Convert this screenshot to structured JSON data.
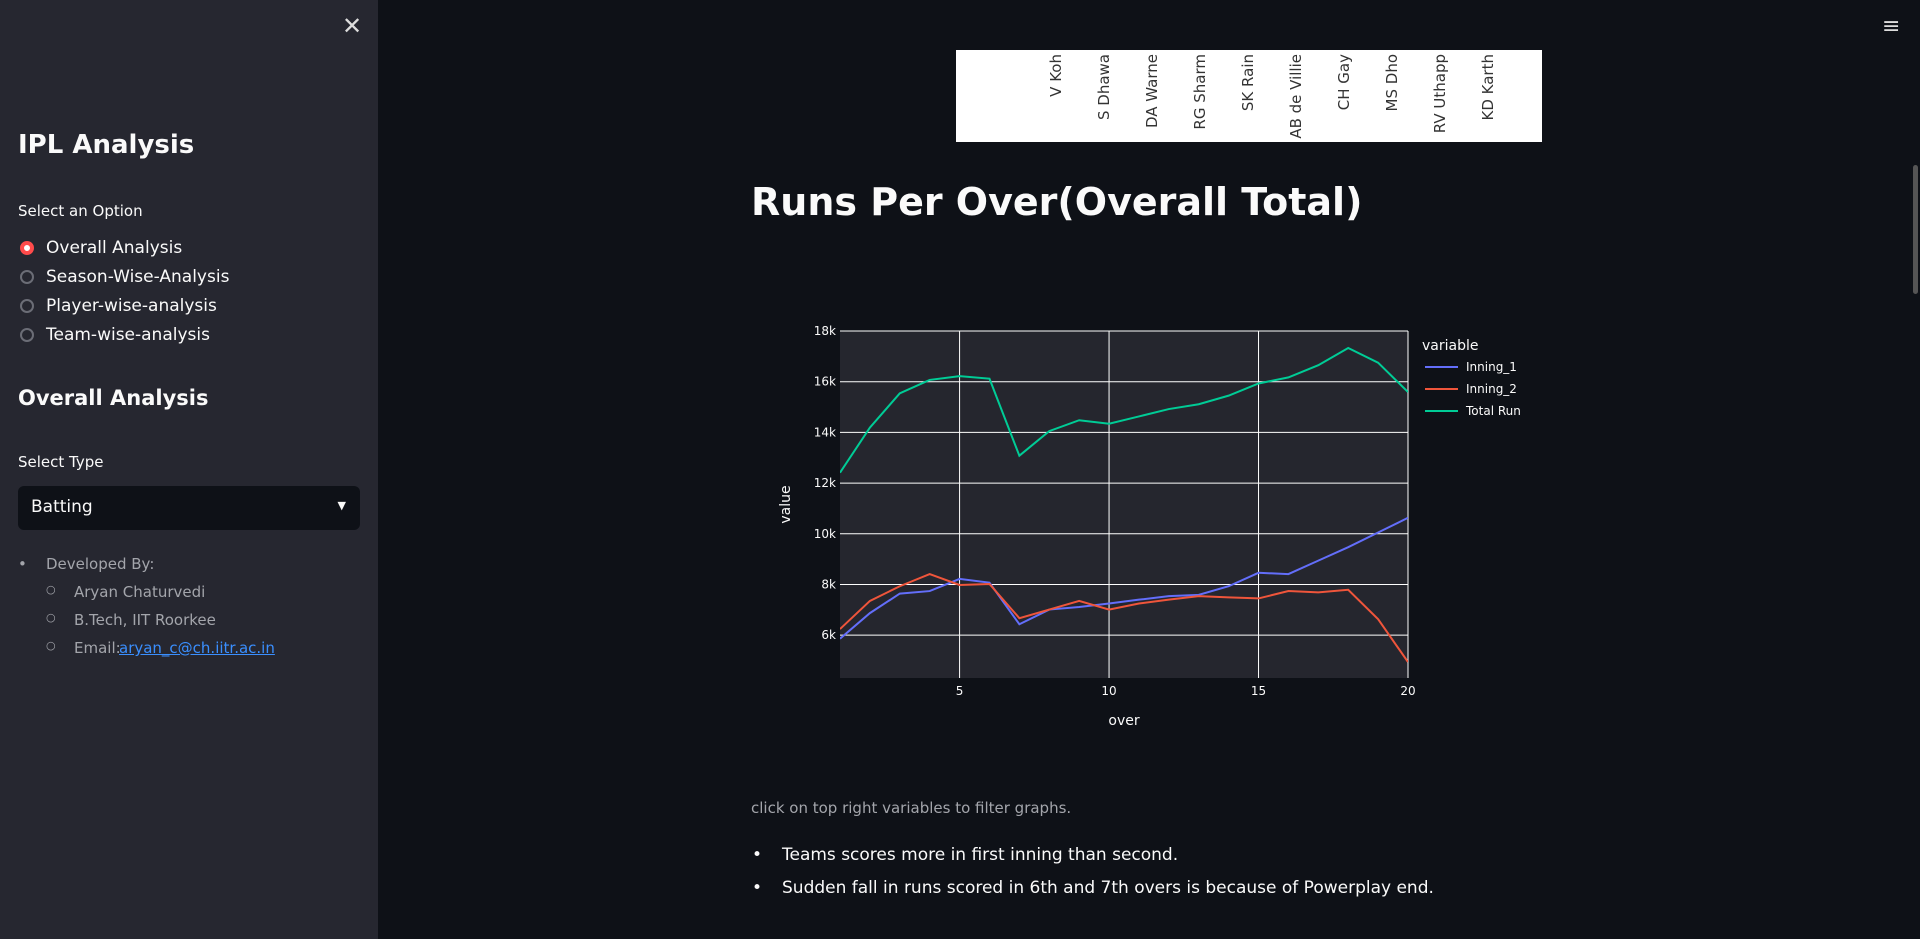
{
  "sidebar": {
    "title": "IPL Analysis",
    "option_label": "Select an Option",
    "options": [
      "Overall Analysis",
      "Season-Wise-Analysis",
      "Player-wise-analysis",
      "Team-wise-analysis"
    ],
    "selected": 0,
    "section_title": "Overall Analysis",
    "type_label": "Select Type",
    "type_value": "Batting",
    "credits": {
      "heading": "Developed By:",
      "items": [
        "Aryan Chaturvedi",
        "B.Tech, IIT Roorkee"
      ],
      "email_label": "Email:",
      "email": "aryan_c@ch.iitr.ac.in"
    }
  },
  "main": {
    "top_chart_labels": [
      "V Koh",
      "S Dhawa",
      "DA Warne",
      "RG Sharm",
      "SK Rain",
      "AB de Villie",
      "CH Gay",
      "MS Dho",
      "RV Uthapp",
      "KD Karth"
    ],
    "heading": "Runs Per Over(Overall Total)",
    "note": "click on top right variables to filter graphs.",
    "bullets": [
      "Teams scores more in first inning than second.",
      "Sudden fall in runs scored in 6th and 7th overs is because of Powerplay end."
    ]
  },
  "chart_data": {
    "type": "line",
    "x_label": "over",
    "y_label": "value",
    "legend_title": "variable",
    "x": [
      1,
      2,
      3,
      4,
      5,
      6,
      7,
      8,
      9,
      10,
      11,
      12,
      13,
      14,
      15,
      16,
      17,
      18,
      19,
      20
    ],
    "series": [
      {
        "name": "Inning_1",
        "color": "#636efa",
        "values": [
          5860,
          6870,
          7640,
          7740,
          8220,
          8070,
          6430,
          7010,
          7110,
          7250,
          7400,
          7540,
          7590,
          7930,
          8460,
          8410,
          8940,
          9470,
          10050,
          10630
        ]
      },
      {
        "name": "Inning_2",
        "color": "#ef553b",
        "values": [
          6240,
          7350,
          7930,
          8410,
          7980,
          8020,
          6670,
          7010,
          7350,
          7010,
          7250,
          7400,
          7540,
          7490,
          7450,
          7740,
          7690,
          7790,
          6630,
          4940
        ]
      },
      {
        "name": "Total Run",
        "color": "#00cc96",
        "values": [
          12410,
          14190,
          15540,
          16070,
          16220,
          16120,
          13080,
          14050,
          14480,
          14340,
          14630,
          14920,
          15110,
          15450,
          15930,
          16170,
          16650,
          17330,
          16750,
          15590
        ]
      }
    ],
    "xlim": [
      1,
      20
    ],
    "xticks": [
      5,
      10,
      15,
      20
    ],
    "ylim": [
      4310,
      18000
    ],
    "yticks": [
      {
        "value": 6000,
        "label": "6k"
      },
      {
        "value": 8000,
        "label": "8k"
      },
      {
        "value": 10000,
        "label": "10k"
      },
      {
        "value": 12000,
        "label": "12k"
      },
      {
        "value": 14000,
        "label": "14k"
      },
      {
        "value": 16000,
        "label": "16k"
      },
      {
        "value": 18000,
        "label": "18k"
      }
    ],
    "grid": true,
    "legend": "right"
  }
}
